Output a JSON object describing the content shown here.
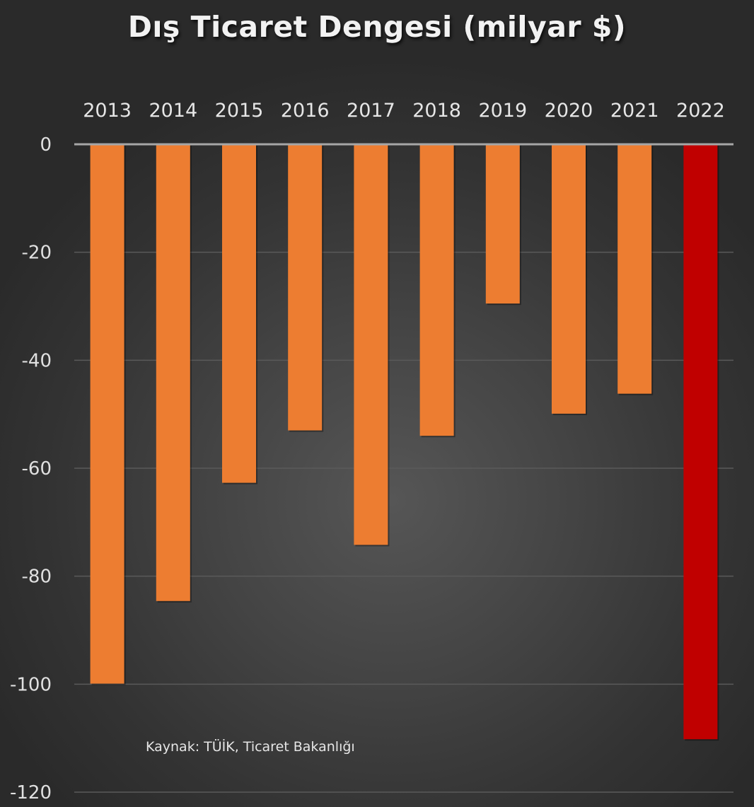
{
  "chart_data": {
    "type": "bar",
    "title": "Dış Ticaret Dengesi (milyar $)",
    "xlabel": "",
    "ylabel": "",
    "categories": [
      "2013",
      "2014",
      "2015",
      "2016",
      "2017",
      "2018",
      "2019",
      "2020",
      "2021",
      "2022"
    ],
    "values": [
      -99.9,
      -84.6,
      -62.7,
      -53.0,
      -74.2,
      -54.0,
      -29.5,
      -49.9,
      -46.2,
      -110.2
    ],
    "highlight_index": 9,
    "ylim": [
      -120,
      0
    ],
    "yticks": [
      0,
      -20,
      -40,
      -60,
      -80,
      -100,
      -120
    ],
    "ytick_labels": [
      "0",
      "-20",
      "-40",
      "-60",
      "-80",
      "-100",
      "-120"
    ],
    "x_axis_position": "top",
    "grid": true,
    "legend": "none",
    "annotation": "Kaynak: TÜİK, Ticaret Bakanlığı",
    "colors": {
      "bar": "#ED7D31",
      "highlight": "#C00000",
      "gridline": "#5a5a5a",
      "axis": "#a6a6a6"
    }
  }
}
